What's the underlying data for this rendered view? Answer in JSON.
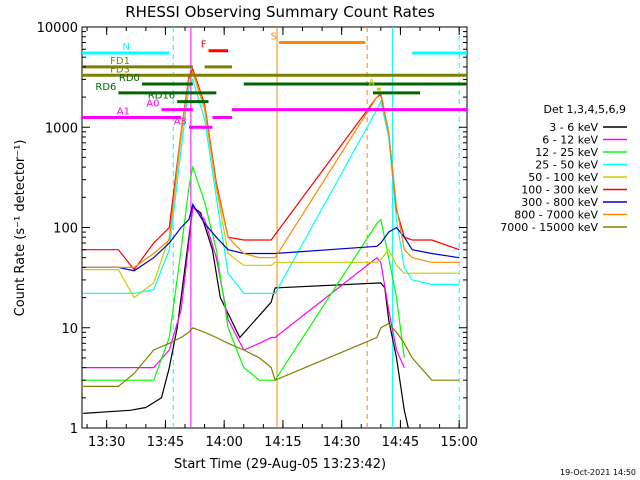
{
  "chart_data": {
    "type": "line",
    "title": "RHESSI Observing Summary Count Rates",
    "xlabel": "Start Time (29-Aug-05 13:23:42)",
    "ylabel": "Count Rate (s⁻¹ detector⁻¹)",
    "y_scale": "log",
    "ylim": [
      1,
      10000
    ],
    "xlim": [
      "13:23:42",
      "15:02:00"
    ],
    "x_ticks": [
      "13:30",
      "13:45",
      "14:00",
      "14:15",
      "14:30",
      "14:45",
      "15:00"
    ],
    "y_ticks": [
      "1",
      "10",
      "100",
      "1000",
      "10000"
    ],
    "legend_title": "Det 1,3,4,5,6,9",
    "timestamp": "19-Oct-2021 14:50",
    "series": [
      {
        "name": "3 - 6 keV",
        "color": "#000000",
        "x": [
          "13:24",
          "13:36",
          "13:40",
          "13:44",
          "13:46",
          "13:48",
          "13:51",
          "13:52",
          "13:54",
          "13:57",
          "13:59",
          "14:04",
          "14:08",
          "14:12",
          "14:13",
          "14:40",
          "14:41",
          "14:42",
          "14:44",
          "14:46",
          "14:47"
        ],
        "y": [
          1.4,
          1.5,
          1.6,
          2,
          4,
          10,
          80,
          160,
          140,
          60,
          20,
          8,
          12,
          18,
          25,
          28,
          25,
          12,
          5,
          1.5,
          1
        ]
      },
      {
        "name": "6 - 12 keV",
        "color": "#ff00ff",
        "x": [
          "13:24",
          "13:33",
          "13:37",
          "13:42",
          "13:46",
          "13:49",
          "13:51",
          "13:52",
          "13:55",
          "13:58",
          "14:01",
          "14:05",
          "14:09",
          "14:12",
          "14:13",
          "14:39",
          "14:40",
          "14:42",
          "14:44",
          "14:46"
        ],
        "y": [
          4,
          4,
          4,
          4,
          6,
          15,
          70,
          160,
          120,
          50,
          12,
          6,
          7,
          8,
          8,
          50,
          45,
          15,
          6,
          4
        ]
      },
      {
        "name": "12 - 25 keV",
        "color": "#00ff00",
        "x": [
          "13:24",
          "13:33",
          "13:37",
          "13:42",
          "13:46",
          "13:49",
          "13:51",
          "13:52",
          "13:55",
          "13:58",
          "14:01",
          "14:05",
          "14:09",
          "14:12",
          "14:13",
          "14:39",
          "14:40",
          "14:42",
          "14:44",
          "14:46"
        ],
        "y": [
          3,
          3,
          3,
          3,
          8,
          60,
          250,
          400,
          180,
          60,
          10,
          4,
          3,
          3,
          3,
          110,
          120,
          50,
          20,
          5
        ]
      },
      {
        "name": "25 - 50 keV",
        "color": "#00ffff",
        "x": [
          "13:24",
          "13:33",
          "13:37",
          "13:42",
          "13:46",
          "13:49",
          "13:51",
          "13:52",
          "13:55",
          "13:58",
          "14:01",
          "14:05",
          "14:09",
          "14:12",
          "14:13",
          "14:39",
          "14:40",
          "14:42",
          "14:44",
          "14:46",
          "14:48",
          "14:53",
          "15:00"
        ],
        "y": [
          22,
          22,
          22,
          24,
          60,
          600,
          2500,
          3000,
          1200,
          200,
          35,
          22,
          22,
          22,
          22,
          1500,
          1800,
          800,
          120,
          40,
          30,
          27,
          27
        ]
      },
      {
        "name": "50 - 100 keV",
        "color": "#cccc00",
        "x": [
          "13:24",
          "13:33",
          "13:37",
          "13:42",
          "13:46",
          "13:49",
          "13:51",
          "13:52",
          "13:55",
          "13:58",
          "14:01",
          "14:05",
          "14:09",
          "14:12",
          "14:13",
          "14:39",
          "14:40",
          "14:42",
          "14:44",
          "14:46",
          "14:48",
          "14:53",
          "15:00"
        ],
        "y": [
          38,
          38,
          20,
          28,
          80,
          800,
          3000,
          3500,
          1500,
          250,
          55,
          42,
          42,
          42,
          45,
          45,
          48,
          60,
          42,
          35,
          35,
          35,
          35
        ]
      },
      {
        "name": "100 - 300 keV",
        "color": "#ff0000",
        "x": [
          "13:24",
          "13:33",
          "13:37",
          "13:42",
          "13:46",
          "13:49",
          "13:51",
          "13:52",
          "13:55",
          "13:58",
          "14:01",
          "14:05",
          "14:09",
          "14:12",
          "14:13",
          "14:39",
          "14:40",
          "14:42",
          "14:44",
          "14:46",
          "14:48",
          "14:53",
          "15:00"
        ],
        "y": [
          60,
          60,
          38,
          70,
          100,
          900,
          3200,
          3800,
          1700,
          280,
          80,
          75,
          75,
          75,
          85,
          2000,
          2100,
          900,
          150,
          80,
          75,
          75,
          60
        ]
      },
      {
        "name": "300 - 800 keV",
        "color": "#0000cc",
        "x": [
          "13:24",
          "13:33",
          "13:37",
          "13:42",
          "13:46",
          "13:49",
          "13:51",
          "13:52",
          "13:55",
          "13:58",
          "14:01",
          "14:05",
          "14:09",
          "14:12",
          "14:13",
          "14:39",
          "14:40",
          "14:42",
          "14:44",
          "14:46",
          "14:48",
          "14:53",
          "15:00"
        ],
        "y": [
          40,
          40,
          37,
          50,
          70,
          100,
          120,
          170,
          110,
          80,
          60,
          55,
          55,
          55,
          55,
          65,
          70,
          90,
          100,
          80,
          60,
          55,
          50
        ]
      },
      {
        "name": "800 - 7000 keV",
        "color": "#ff8800",
        "x": [
          "13:24",
          "13:33",
          "13:37",
          "13:42",
          "13:46",
          "13:49",
          "13:51",
          "13:52",
          "13:55",
          "13:58",
          "14:01",
          "14:05",
          "14:09",
          "14:12",
          "14:13",
          "14:39",
          "14:40",
          "14:42",
          "14:44",
          "14:46",
          "14:48",
          "14:53",
          "15:00"
        ],
        "y": [
          40,
          40,
          40,
          55,
          75,
          900,
          3000,
          3600,
          1600,
          260,
          80,
          55,
          50,
          50,
          50,
          2000,
          2200,
          900,
          160,
          60,
          50,
          45,
          45
        ]
      },
      {
        "name": "7000 - 15000 keV",
        "color": "#808000",
        "x": [
          "13:24",
          "13:33",
          "13:37",
          "13:42",
          "13:46",
          "13:49",
          "13:51",
          "13:52",
          "13:55",
          "13:58",
          "14:01",
          "14:05",
          "14:09",
          "14:12",
          "14:13",
          "14:39",
          "14:40",
          "14:42",
          "14:44",
          "14:46",
          "14:48",
          "14:53",
          "15:00"
        ],
        "y": [
          2.6,
          2.6,
          3.5,
          6,
          7,
          8,
          9,
          10,
          9,
          8,
          7,
          6,
          5,
          4,
          3,
          8,
          10,
          11,
          9,
          7,
          5,
          3,
          3
        ]
      }
    ],
    "flag_bars": [
      {
        "label": "N",
        "color": "#00ffff",
        "row": 5500,
        "spans": [
          [
            "13:23:42",
            "13:46"
          ],
          [
            "14:48",
            "15:02"
          ]
        ]
      },
      {
        "label": "S",
        "color": "#ff8800",
        "row": 7000,
        "spans": [
          [
            "14:14",
            "14:36"
          ]
        ]
      },
      {
        "label": "F",
        "color": "#ff0000",
        "row": 5800,
        "spans": [
          [
            "13:56",
            "14:01"
          ]
        ]
      },
      {
        "label": "FD1",
        "color": "#808000",
        "row": 4000,
        "spans": [
          [
            "13:23:42",
            "13:52"
          ],
          [
            "13:55",
            "14:02"
          ]
        ]
      },
      {
        "label": "FD3",
        "color": "#808000",
        "row": 3300,
        "spans": [
          [
            "13:23:42",
            "14:02"
          ],
          [
            "14:02",
            "15:02"
          ]
        ]
      },
      {
        "label": "RD0",
        "color": "#006600",
        "row": 2700,
        "spans": [
          [
            "13:39",
            "13:52"
          ],
          [
            "14:05",
            "15:02"
          ]
        ]
      },
      {
        "label": "RD6",
        "color": "#006600",
        "row": 2200,
        "spans": [
          [
            "13:33",
            "13:58"
          ],
          [
            "14:38",
            "14:50"
          ]
        ]
      },
      {
        "label": "RD16",
        "color": "#006600",
        "row": 1800,
        "spans": [
          [
            "13:48",
            "13:56"
          ]
        ]
      },
      {
        "label": "A0",
        "color": "#ff00ff",
        "row": 1500,
        "spans": [
          [
            "13:44",
            "13:52"
          ],
          [
            "14:02",
            "15:02"
          ]
        ]
      },
      {
        "label": "A1",
        "color": "#ff00ff",
        "row": 1250,
        "spans": [
          [
            "13:23:42",
            "13:49"
          ],
          [
            "13:57",
            "14:02"
          ]
        ]
      },
      {
        "label": "A3",
        "color": "#ff00ff",
        "row": 1000,
        "spans": [
          [
            "13:51",
            "13:57"
          ]
        ]
      },
      {
        "label": "A",
        "color": "#cccc00",
        "row": 2400,
        "spans": [
          [
            "14:39",
            "14:40"
          ]
        ]
      }
    ],
    "vertical_lines": [
      {
        "color": "#00ffff",
        "dashed": true,
        "x": "13:47"
      },
      {
        "color": "#00ffff",
        "dashed": false,
        "x": "14:43"
      },
      {
        "color": "#00ffff",
        "dashed": true,
        "x": "15:00"
      },
      {
        "color": "#ff8800",
        "dashed": false,
        "x": "14:13:30"
      },
      {
        "color": "#ff8800",
        "dashed": true,
        "x": "14:36:30"
      },
      {
        "color": "#ff00ff",
        "dashed": false,
        "x": "13:51:30"
      }
    ]
  }
}
